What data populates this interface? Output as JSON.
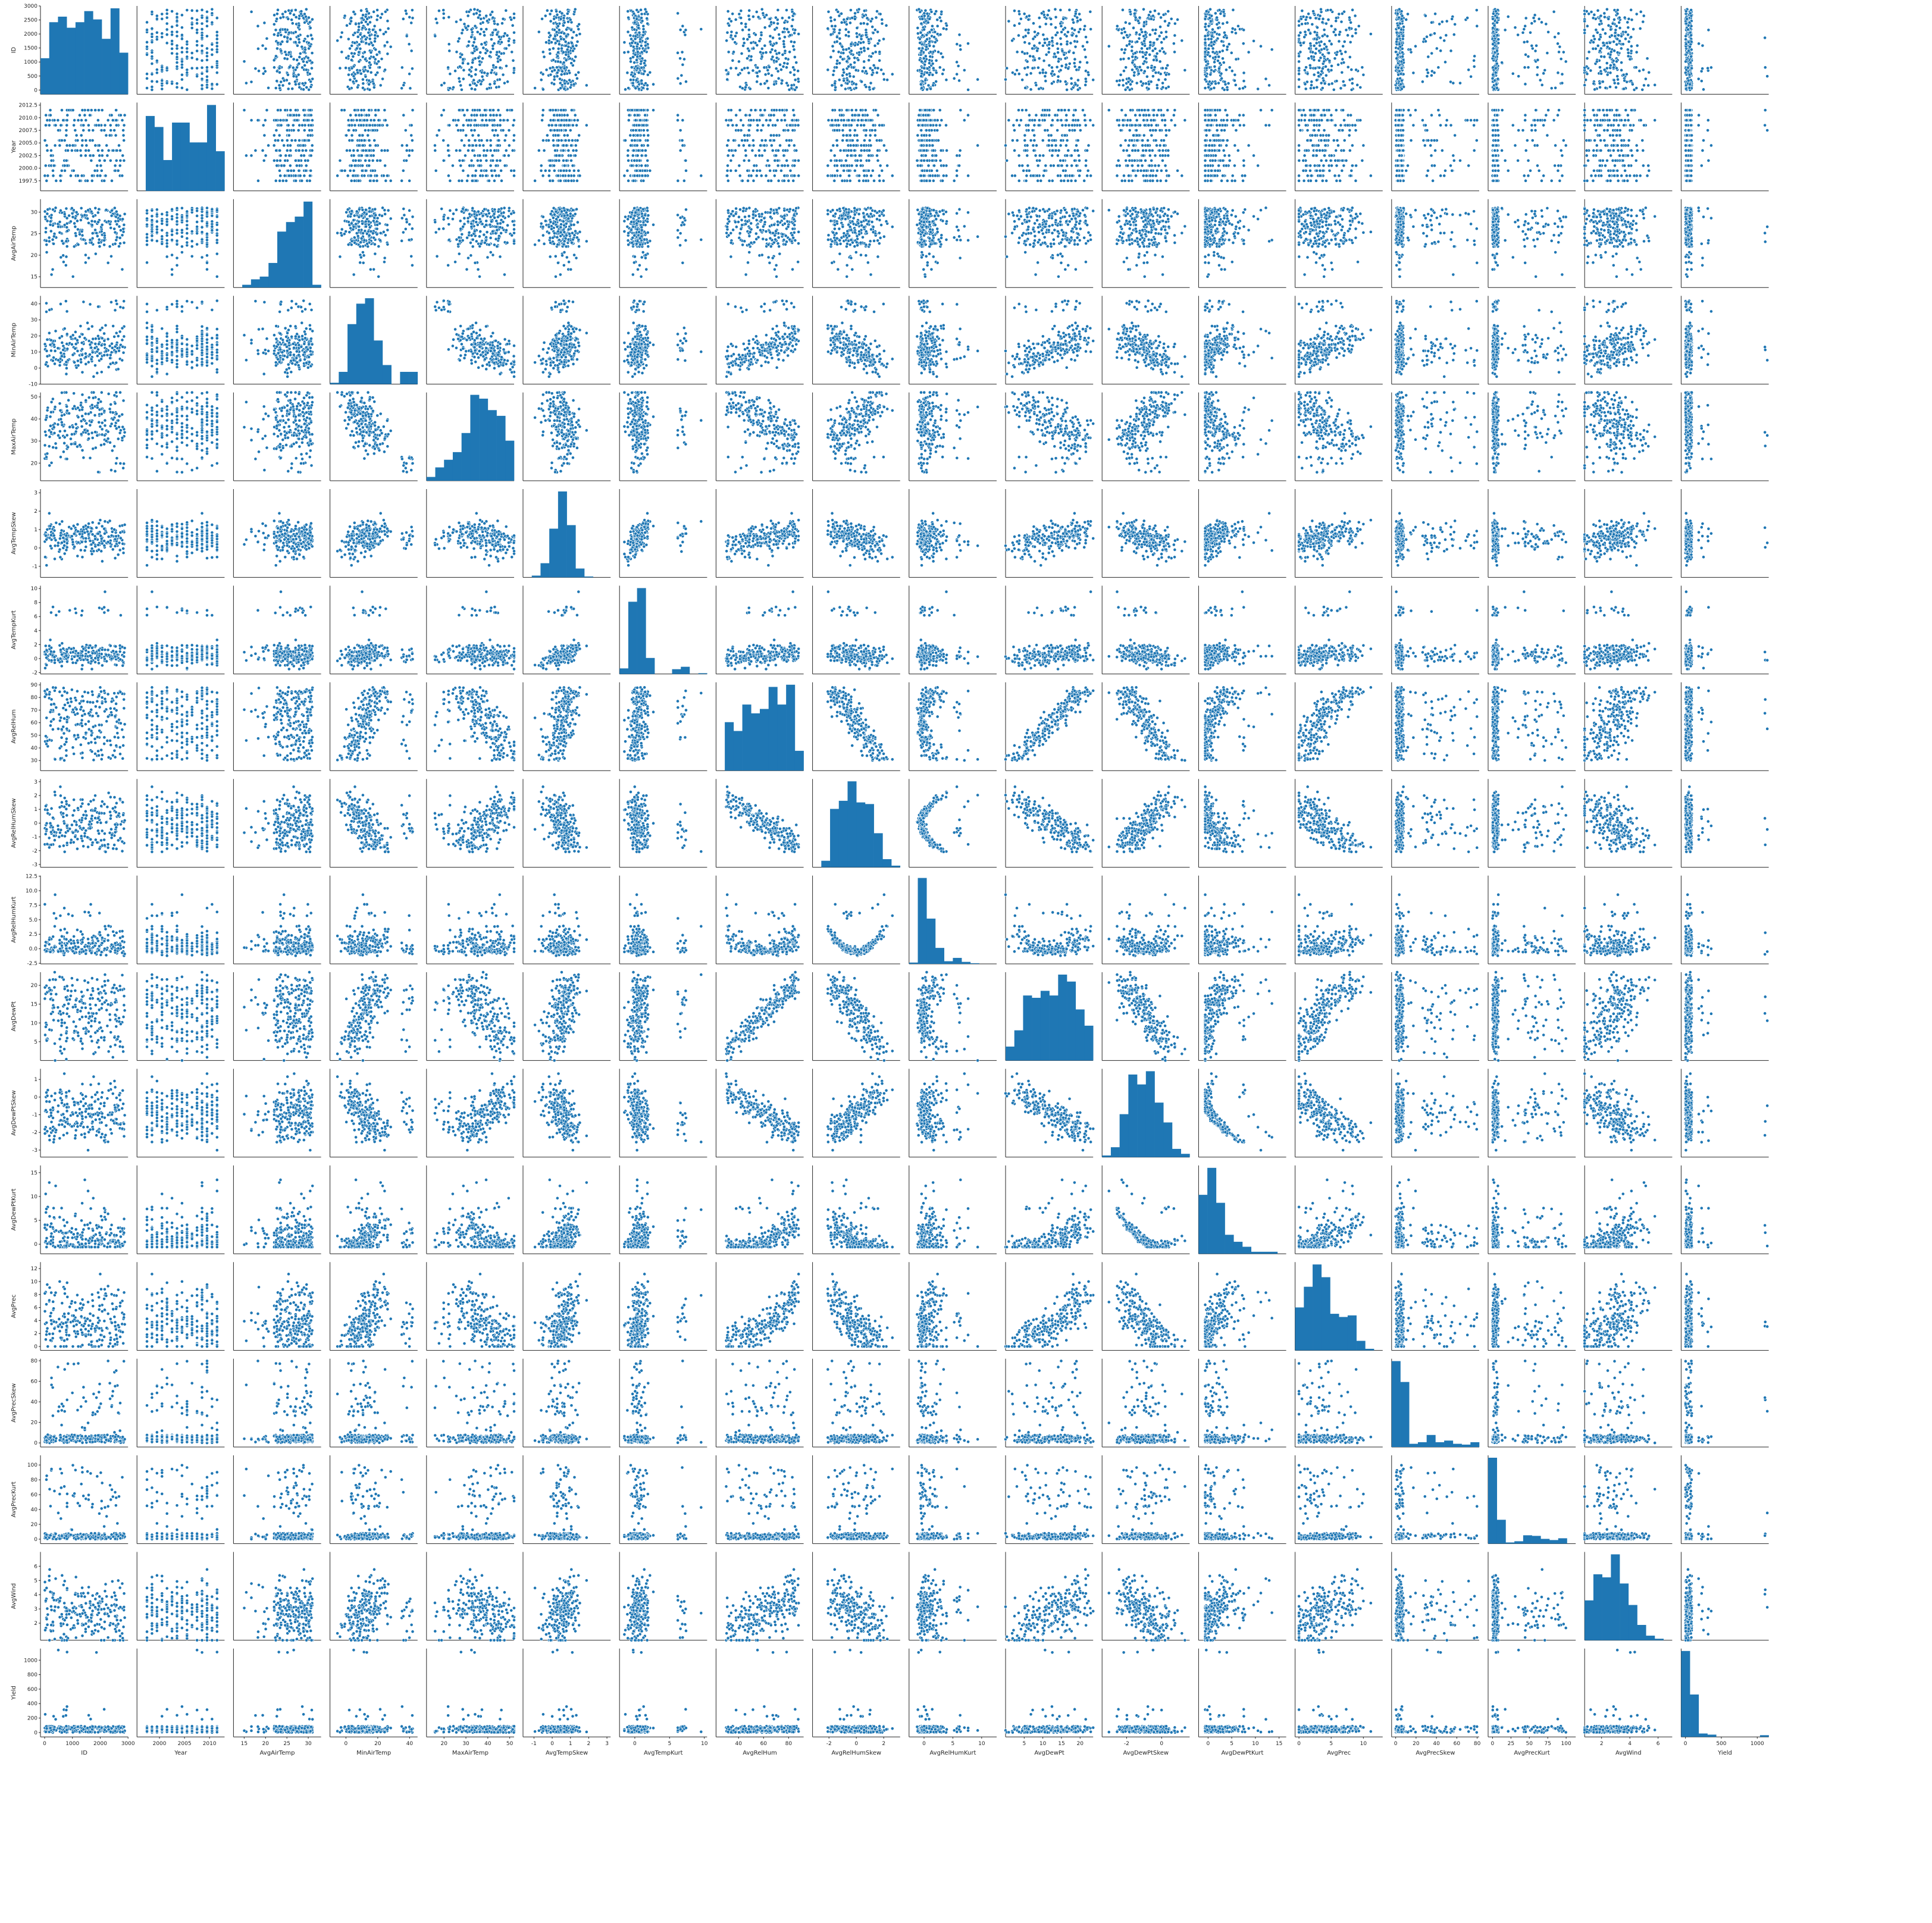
{
  "chart_data": {
    "type": "scatter",
    "variables": [
      "ID",
      "Year",
      "AvgAirTemp",
      "MinAirTemp",
      "MaxAirTemp",
      "AvgTempSkew",
      "AvgTempKurt",
      "AvgRelHum",
      "AvgRelHumSkew",
      "AvgRelHumKurt",
      "AvgDewPt",
      "AvgDewPtSkew",
      "AvgDewPtKurt",
      "AvgPrec",
      "AvgPrecSkew",
      "AvgPrecKurt",
      "AvgWind",
      "Yield"
    ],
    "color": "#1f77b4",
    "ranges": [
      [
        -150,
        3000
      ],
      [
        1995.5,
        2013
      ],
      [
        12.5,
        33
      ],
      [
        -10,
        45
      ],
      [
        12,
        52
      ],
      [
        -1.6,
        3.2
      ],
      [
        -2.2,
        10.4
      ],
      [
        22,
        92
      ],
      [
        -3.2,
        3.2
      ],
      [
        -2.6,
        12.6
      ],
      [
        0,
        23.5
      ],
      [
        -3.4,
        1.6
      ],
      [
        -2,
        16.5
      ],
      [
        -0.6,
        13
      ],
      [
        -4,
        82
      ],
      [
        -6,
        113
      ],
      [
        0.8,
        7
      ],
      [
        -60,
        1160
      ]
    ],
    "ticks": [
      [
        "0",
        "500",
        "1000",
        "1500",
        "2000",
        "2500",
        "3000"
      ],
      [
        "1997.5",
        "2000.0",
        "2002.5",
        "2005.0",
        "2007.5",
        "2010.0",
        "2012.5"
      ],
      [
        "15",
        "20",
        "25",
        "30"
      ],
      [
        "-10",
        "0",
        "10",
        "20",
        "30",
        "40"
      ],
      [
        "20",
        "30",
        "40",
        "50"
      ],
      [
        "-1",
        "0",
        "1",
        "2",
        "3"
      ],
      [
        "-2",
        "0",
        "2",
        "4",
        "6",
        "8",
        "10"
      ],
      [
        "30",
        "40",
        "50",
        "60",
        "70",
        "80",
        "90"
      ],
      [
        "-3",
        "-2",
        "-1",
        "0",
        "1",
        "2",
        "3"
      ],
      [
        "-2.5",
        "0.0",
        "2.5",
        "5.0",
        "7.5",
        "10.0",
        "12.5"
      ],
      [
        "5",
        "10",
        "15",
        "20"
      ],
      [
        "-3",
        "-2",
        "-1",
        "0",
        "1"
      ],
      [
        "0",
        "5",
        "10",
        "15"
      ],
      [
        "0",
        "2",
        "4",
        "6",
        "8",
        "10",
        "12"
      ],
      [
        "0",
        "20",
        "40",
        "60",
        "80"
      ],
      [
        "0",
        "20",
        "40",
        "60",
        "80",
        "100"
      ],
      [
        "2",
        "3",
        "4",
        "5",
        "6"
      ],
      [
        "0",
        "200",
        "400",
        "600",
        "800",
        "1000",
        "1200"
      ]
    ],
    "xticks": [
      [
        "0",
        "1000",
        "2000",
        "3000"
      ],
      [
        "2000",
        "2005",
        "2010"
      ],
      [
        "15",
        "20",
        "25",
        "30"
      ],
      [
        "0",
        "20",
        "40"
      ],
      [
        "20",
        "30",
        "40",
        "50"
      ],
      [
        "-1",
        "0",
        "1",
        "2",
        "3"
      ],
      [
        "0",
        "5",
        "10"
      ],
      [
        "40",
        "60",
        "80"
      ],
      [
        "-2",
        "0",
        "2"
      ],
      [
        "0",
        "5",
        "10"
      ],
      [
        "5",
        "10",
        "15",
        "20"
      ],
      [
        "-2",
        "0"
      ],
      [
        "0",
        "5",
        "10",
        "15"
      ],
      [
        "0",
        "5",
        "10"
      ],
      [
        "0",
        "20",
        "40",
        "60",
        "80"
      ],
      [
        "0",
        "25",
        "50",
        "75",
        "100"
      ],
      [
        "2",
        "4",
        "6"
      ],
      [
        "0",
        "500",
        "1000"
      ]
    ],
    "grid": false,
    "legend": "none",
    "diagonal": "histogram",
    "offdiagonal": "scatter"
  }
}
